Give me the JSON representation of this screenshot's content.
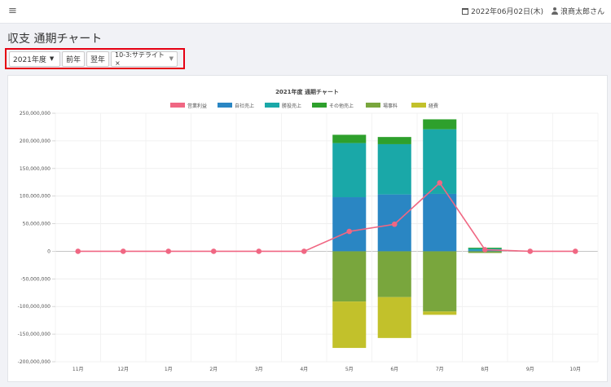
{
  "topbar": {
    "menu_icon": "hamburger-icon",
    "date": "2022年06月02日(木)",
    "user": "浪商太郎さん"
  },
  "page": {
    "title": "収支 通期チャート"
  },
  "controls": {
    "year_select": "2021年度",
    "prev_button": "前年",
    "next_button": "翌年",
    "store_select": "10-3:サテライト×"
  },
  "colors": {
    "highlight": "#e60012",
    "profit": "#f06783",
    "own_sales": "#2a86c3",
    "bet_sales": "#1aa8a8",
    "other_sales": "#2ea02c",
    "fee": "#79a63d",
    "expense": "#c2c12b"
  },
  "chart_data": {
    "type": "bar",
    "title": "2021年度 通期チャート",
    "categories": [
      "11月",
      "12月",
      "1月",
      "2月",
      "3月",
      "4月",
      "5月",
      "6月",
      "7月",
      "8月",
      "9月",
      "10月"
    ],
    "ylim": [
      -200000000,
      250000000
    ],
    "yticks": [
      250000000,
      200000000,
      150000000,
      100000000,
      50000000,
      0,
      -50000000,
      -100000000,
      -150000000,
      -200000000
    ],
    "ytick_labels": [
      "250,000,000",
      "200,000,000",
      "150,000,000",
      "100,000,000",
      "50,000,000",
      "0",
      "-50,000,000",
      "-100,000,000",
      "-150,000,000",
      "-200,000,000"
    ],
    "grid": true,
    "legend_position": "top",
    "stacked": true,
    "series": [
      {
        "name": "営業利益",
        "type": "line",
        "color": "#f06783",
        "values": [
          0,
          0,
          0,
          0,
          0,
          0,
          36000000,
          49000000,
          124000000,
          3000000,
          0,
          0
        ]
      },
      {
        "name": "自社売上",
        "type": "bar",
        "color": "#2a86c3",
        "values": [
          0,
          0,
          0,
          0,
          0,
          0,
          98000000,
          103000000,
          104000000,
          2000000,
          0,
          0
        ]
      },
      {
        "name": "勝投売上",
        "type": "bar",
        "color": "#1aa8a8",
        "values": [
          0,
          0,
          0,
          0,
          0,
          0,
          98000000,
          91000000,
          117000000,
          3000000,
          0,
          0
        ]
      },
      {
        "name": "その他売上",
        "type": "bar",
        "color": "#2ea02c",
        "values": [
          0,
          0,
          0,
          0,
          0,
          0,
          15000000,
          13000000,
          18000000,
          1500000,
          0,
          0
        ]
      },
      {
        "name": "場事料",
        "type": "bar",
        "color": "#79a63d",
        "values": [
          0,
          0,
          0,
          0,
          0,
          0,
          -91000000,
          -83000000,
          -109000000,
          -3000000,
          0,
          0
        ]
      },
      {
        "name": "経費",
        "type": "bar",
        "color": "#c2c12b",
        "values": [
          0,
          0,
          0,
          0,
          0,
          0,
          -84000000,
          -74000000,
          -6000000,
          0,
          0,
          0
        ]
      }
    ]
  }
}
